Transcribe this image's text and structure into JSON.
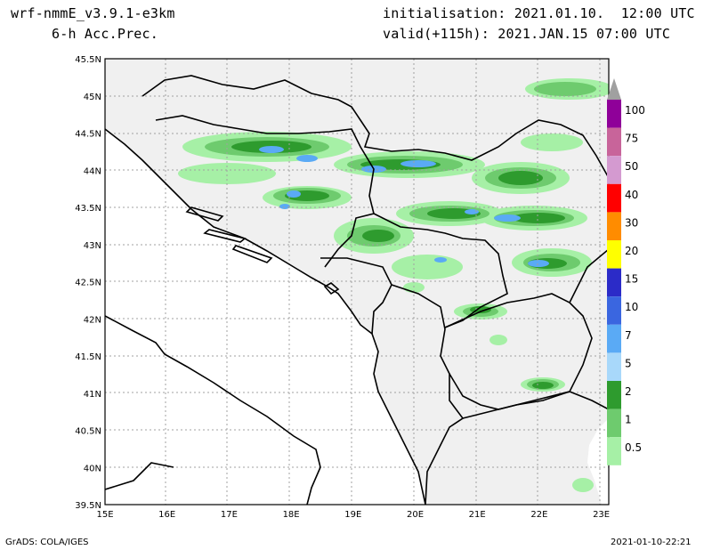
{
  "header": {
    "model": "wrf-nmmE_v3.9.1-e3km",
    "field": "6-h Acc.Prec.",
    "init": "initialisation: 2021.01.10.  12:00 UTC",
    "valid": "valid(+115h): 2021.JAN.15 07:00 UTC"
  },
  "footer": {
    "left": "GrADS: COLA/IGES",
    "right": "2021-01-10-22:21"
  },
  "map": {
    "lon_range": [
      15,
      23.3
    ],
    "lat_range": [
      39.5,
      45.5
    ],
    "lon_ticks": [
      "15E",
      "16E",
      "17E",
      "18E",
      "19E",
      "20E",
      "21E",
      "22E",
      "23E"
    ],
    "lat_ticks": [
      "45.5N",
      "45N",
      "44.5N",
      "44N",
      "43.5N",
      "43N",
      "42.5N",
      "42N",
      "41.5N",
      "41N",
      "40.5N",
      "40N",
      "39.5N"
    ],
    "land_color": "#f0f0f0",
    "gridlines": true
  },
  "legend": {
    "labels": [
      "100",
      "75",
      "50",
      "40",
      "30",
      "20",
      "15",
      "10",
      "7",
      "5",
      "2",
      "1",
      "0.5"
    ],
    "colors": [
      "#8f0099",
      "#c8649a",
      "#d49ad0",
      "#ff0000",
      "#ff8c00",
      "#ffff00",
      "#2b2bc8",
      "#3a66e0",
      "#5aaaf5",
      "#a8d8fa",
      "#2e9b2e",
      "#6ecb6e",
      "#a6f0a6"
    ]
  }
}
